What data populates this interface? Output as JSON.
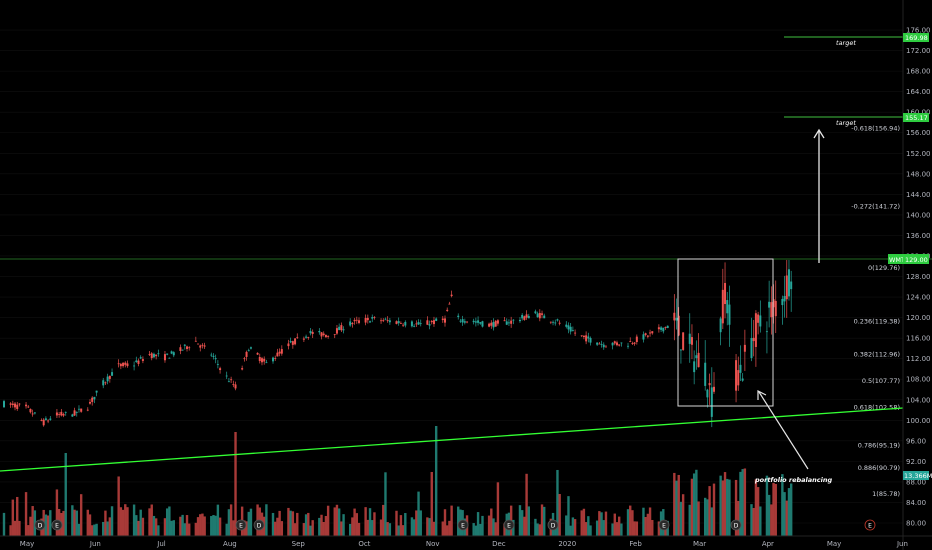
{
  "colors": {
    "up": "#26a69a",
    "down": "#ef5350",
    "vol_up": "#1f7a70",
    "vol_down": "#a83a38",
    "trendline": "#33ff33",
    "hline": "#2e8b2e",
    "target_line": "#3fbf3f",
    "badge_green": "#2ecc40",
    "grid": "#111111"
  },
  "price_badge": {
    "ticker": "WMT",
    "price": "129.00"
  },
  "volume_badge": "13.366M",
  "target_labels": [
    "target",
    "target"
  ],
  "target_badges": [
    "169.98",
    "155.17"
  ],
  "annotation": "portfolio rebalancing",
  "event_markers": [
    "D",
    "E",
    "E",
    "D",
    "E",
    "E",
    "D",
    "E",
    "D",
    "E"
  ],
  "chart_data": {
    "type": "candlestick",
    "y_range": [
      78,
      177
    ],
    "y_ticks": [
      "176.00",
      "172.00",
      "168.00",
      "164.00",
      "160.00",
      "156.00",
      "152.00",
      "148.00",
      "144.00",
      "140.00",
      "136.00",
      "132.00",
      "128.00",
      "124.00",
      "120.00",
      "116.00",
      "112.00",
      "108.00",
      "104.00",
      "100.00",
      "96.00",
      "92.00",
      "88.00",
      "84.00",
      "80.00"
    ],
    "x_ticks": [
      "May",
      "Jun",
      "Jul",
      "Aug",
      "Sep",
      "Oct",
      "Nov",
      "Dec",
      "2020",
      "Feb",
      "Mar",
      "Apr",
      "May",
      "Jun"
    ],
    "fib_levels": [
      {
        "label": "-0.618(156.94)",
        "value": 156.94
      },
      {
        "label": "-0.272(141.72)",
        "value": 141.72
      },
      {
        "label": "0(129.76)",
        "value": 129.76
      },
      {
        "label": "0.236(119.38)",
        "value": 119.38
      },
      {
        "label": "0.382(112.96)",
        "value": 112.96
      },
      {
        "label": "0.5(107.77)",
        "value": 107.77
      },
      {
        "label": "0.618(102.58)",
        "value": 102.58
      },
      {
        "label": "0.786(95.19)",
        "value": 95.19
      },
      {
        "label": "0.886(90.79)",
        "value": 90.79
      },
      {
        "label": "1(85.78)",
        "value": 85.78
      }
    ],
    "targets": [
      169.98,
      155.17
    ],
    "horizontal_level": 129.76,
    "price_keypoints": [
      [
        "2019-04-26",
        103.2
      ],
      [
        "2019-05-06",
        102.5
      ],
      [
        "2019-05-14",
        99.6
      ],
      [
        "2019-05-20",
        101.0
      ],
      [
        "2019-05-28",
        101.3
      ],
      [
        "2019-06-03",
        102.6
      ],
      [
        "2019-06-10",
        107.2
      ],
      [
        "2019-06-17",
        110.6
      ],
      [
        "2019-06-24",
        110.9
      ],
      [
        "2019-07-01",
        112.8
      ],
      [
        "2019-07-08",
        112.3
      ],
      [
        "2019-07-15",
        113.6
      ],
      [
        "2019-07-22",
        115.4
      ],
      [
        "2019-07-29",
        112.9
      ],
      [
        "2019-08-05",
        108.4
      ],
      [
        "2019-08-09",
        106.5
      ],
      [
        "2019-08-15",
        114.1
      ],
      [
        "2019-08-23",
        111.0
      ],
      [
        "2019-09-03",
        114.9
      ],
      [
        "2019-09-12",
        117.0
      ],
      [
        "2019-09-20",
        116.6
      ],
      [
        "2019-10-01",
        119.0
      ],
      [
        "2019-10-10",
        119.7
      ],
      [
        "2019-10-21",
        119.2
      ],
      [
        "2019-11-01",
        118.6
      ],
      [
        "2019-11-12",
        119.6
      ],
      [
        "2019-11-15",
        124.0
      ],
      [
        "2019-11-18",
        119.8
      ],
      [
        "2019-12-02",
        118.6
      ],
      [
        "2019-12-13",
        119.3
      ],
      [
        "2019-12-23",
        120.8
      ],
      [
        "2020-01-02",
        119.2
      ],
      [
        "2020-01-13",
        116.3
      ],
      [
        "2020-01-23",
        114.8
      ],
      [
        "2020-02-03",
        115.0
      ],
      [
        "2020-02-14",
        116.9
      ],
      [
        "2020-02-24",
        119.0
      ],
      [
        "2020-03-02",
        113.5
      ],
      [
        "2020-03-09",
        110.0
      ],
      [
        "2020-03-12",
        104.0
      ],
      [
        "2020-03-18",
        126.0
      ],
      [
        "2020-03-23",
        109.0
      ],
      [
        "2020-03-26",
        110.5
      ],
      [
        "2020-04-01",
        117.6
      ],
      [
        "2020-04-08",
        121.3
      ],
      [
        "2020-04-14",
        125.2
      ],
      [
        "2020-04-17",
        129.0
      ]
    ]
  }
}
